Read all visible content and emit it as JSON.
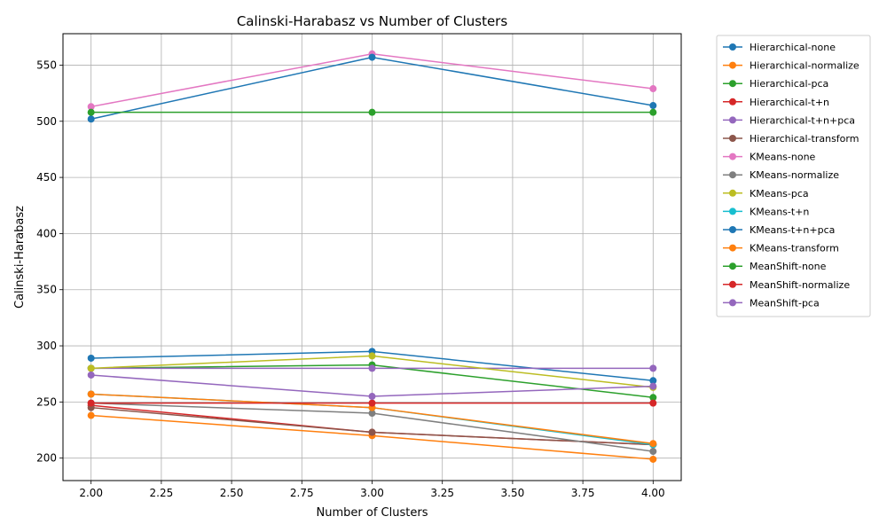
{
  "chart_data": {
    "type": "line",
    "title": "Calinski-Harabasz vs Number of Clusters",
    "xlabel": "Number of Clusters",
    "ylabel": "Calinski-Harabasz",
    "xlim": [
      1.9,
      4.1
    ],
    "ylim": [
      180,
      578
    ],
    "xticks": [
      "2.00",
      "2.25",
      "2.50",
      "2.75",
      "3.00",
      "3.25",
      "3.50",
      "3.75",
      "4.00"
    ],
    "yticks": [
      "200",
      "250",
      "300",
      "350",
      "400",
      "450",
      "500",
      "550"
    ],
    "grid": true,
    "legend_position": "outside-right",
    "x": [
      2,
      3,
      4
    ],
    "series": [
      {
        "name": "Hierarchical-none",
        "color": "#1f77b4",
        "values": [
          289,
          295,
          269
        ]
      },
      {
        "name": "Hierarchical-normalize",
        "color": "#ff7f0e",
        "values": [
          238,
          220,
          199
        ]
      },
      {
        "name": "Hierarchical-pca",
        "color": "#2ca02c",
        "values": [
          280,
          283,
          254
        ]
      },
      {
        "name": "Hierarchical-t+n",
        "color": "#d62728",
        "values": [
          247,
          223,
          212
        ]
      },
      {
        "name": "Hierarchical-t+n+pca",
        "color": "#9467bd",
        "values": [
          280,
          280,
          280
        ]
      },
      {
        "name": "Hierarchical-transform",
        "color": "#8c564b",
        "values": [
          245,
          223,
          212
        ]
      },
      {
        "name": "KMeans-none",
        "color": "#e377c2",
        "values": [
          513,
          560,
          529
        ]
      },
      {
        "name": "KMeans-normalize",
        "color": "#7f7f7f",
        "values": [
          249,
          240,
          206
        ]
      },
      {
        "name": "KMeans-pca",
        "color": "#bcbd22",
        "values": [
          280,
          291,
          263
        ]
      },
      {
        "name": "KMeans-t+n",
        "color": "#17becf",
        "values": [
          257,
          245,
          212
        ]
      },
      {
        "name": "KMeans-t+n+pca",
        "color": "#1f77b4",
        "values": [
          502,
          557,
          514
        ]
      },
      {
        "name": "KMeans-transform",
        "color": "#ff7f0e",
        "values": [
          257,
          245,
          213
        ]
      },
      {
        "name": "MeanShift-none",
        "color": "#2ca02c",
        "values": [
          508,
          508,
          508
        ]
      },
      {
        "name": "MeanShift-normalize",
        "color": "#d62728",
        "values": [
          249,
          249,
          249
        ]
      },
      {
        "name": "MeanShift-pca",
        "color": "#9467bd",
        "values": [
          274,
          255,
          264
        ]
      }
    ]
  }
}
